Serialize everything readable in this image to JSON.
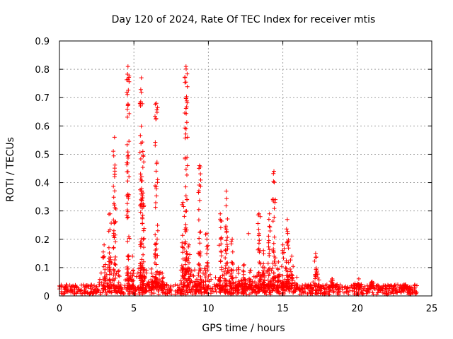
{
  "chart_data": {
    "type": "scatter",
    "title": "Day 120 of 2024, Rate Of TEC Index for receiver mtis",
    "xlabel": "GPS time / hours",
    "ylabel": "ROTI / TECUs",
    "xlim": [
      0,
      25
    ],
    "ylim": [
      0,
      0.9
    ],
    "xticks": [
      0,
      5,
      10,
      15,
      20,
      25
    ],
    "yticks": [
      0,
      0.1,
      0.2,
      0.3,
      0.4,
      0.5,
      0.6,
      0.7,
      0.8,
      0.9
    ],
    "xtick_labels": [
      "0",
      "5",
      "10",
      "15",
      "20",
      "25"
    ],
    "ytick_labels": [
      "0",
      "0.1",
      "0.2",
      "0.3",
      "0.4",
      "0.5",
      "0.6",
      "0.7",
      "0.8",
      "0.9"
    ],
    "grid": true,
    "marker": "+",
    "color": "#ff0000",
    "baseline_band": {
      "x": [
        0,
        24
      ],
      "y": [
        0.005,
        0.04
      ]
    },
    "spikes": [
      {
        "x": 3.0,
        "ymax": 0.18
      },
      {
        "x": 3.4,
        "ymax": 0.29
      },
      {
        "x": 3.7,
        "ymax": 0.56
      },
      {
        "x": 4.6,
        "ymax": 0.81
      },
      {
        "x": 4.9,
        "ymax": 0.14
      },
      {
        "x": 5.5,
        "ymax": 0.77
      },
      {
        "x": 5.6,
        "ymax": 0.51
      },
      {
        "x": 6.2,
        "ymax": 0.08
      },
      {
        "x": 6.5,
        "ymax": 0.68
      },
      {
        "x": 6.9,
        "ymax": 0.08
      },
      {
        "x": 8.3,
        "ymax": 0.33
      },
      {
        "x": 8.5,
        "ymax": 0.81
      },
      {
        "x": 8.7,
        "ymax": 0.18
      },
      {
        "x": 9.4,
        "ymax": 0.46
      },
      {
        "x": 9.9,
        "ymax": 0.22
      },
      {
        "x": 10.8,
        "ymax": 0.29
      },
      {
        "x": 11.2,
        "ymax": 0.37
      },
      {
        "x": 11.6,
        "ymax": 0.2
      },
      {
        "x": 12.0,
        "ymax": 0.1
      },
      {
        "x": 12.4,
        "ymax": 0.11
      },
      {
        "x": 12.8,
        "ymax": 0.09
      },
      {
        "x": 13.4,
        "ymax": 0.29
      },
      {
        "x": 13.7,
        "ymax": 0.16
      },
      {
        "x": 14.1,
        "ymax": 0.29
      },
      {
        "x": 14.4,
        "ymax": 0.44
      },
      {
        "x": 14.7,
        "ymax": 0.12
      },
      {
        "x": 15.0,
        "ymax": 0.18
      },
      {
        "x": 15.3,
        "ymax": 0.27
      },
      {
        "x": 15.6,
        "ymax": 0.14
      },
      {
        "x": 17.2,
        "ymax": 0.15
      },
      {
        "x": 18.3,
        "ymax": 0.06
      },
      {
        "x": 20.1,
        "ymax": 0.06
      },
      {
        "x": 21.0,
        "ymax": 0.05
      },
      {
        "x": 23.2,
        "ymax": 0.04
      }
    ],
    "outliers": [
      {
        "x": 12.7,
        "y": 0.22
      },
      {
        "x": 14.5,
        "y": 0.34
      },
      {
        "x": 9.9,
        "y": 0.2
      },
      {
        "x": 8.6,
        "y": 0.56
      },
      {
        "x": 8.6,
        "y": 0.46
      },
      {
        "x": 6.6,
        "y": 0.23
      }
    ]
  }
}
